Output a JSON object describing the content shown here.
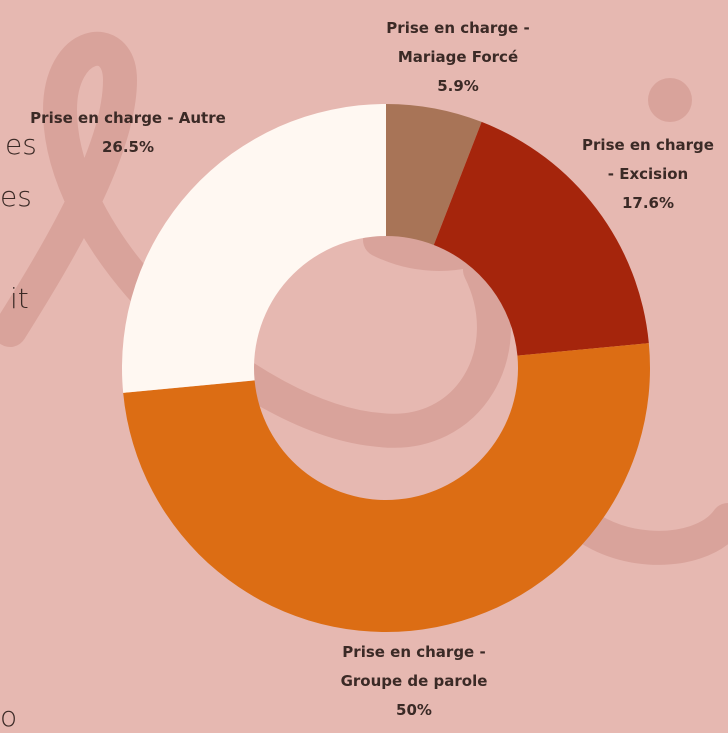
{
  "chart_data": {
    "type": "donut",
    "categories": [
      "Prise en charge - Mariage Forcé",
      "Prise en charge - Excision",
      "Prise en charge - Groupe de parole",
      "Prise en charge - Autre"
    ],
    "values": [
      5.9,
      17.6,
      50,
      26.5
    ],
    "value_labels": [
      "5.9%",
      "17.6%",
      "50%",
      "26.5%"
    ],
    "colors": [
      "#a87457",
      "#a5250c",
      "#dc6d14",
      "#fff8f2"
    ]
  },
  "background_text_fragments": [
    "es",
    "es",
    "it",
    "o"
  ]
}
